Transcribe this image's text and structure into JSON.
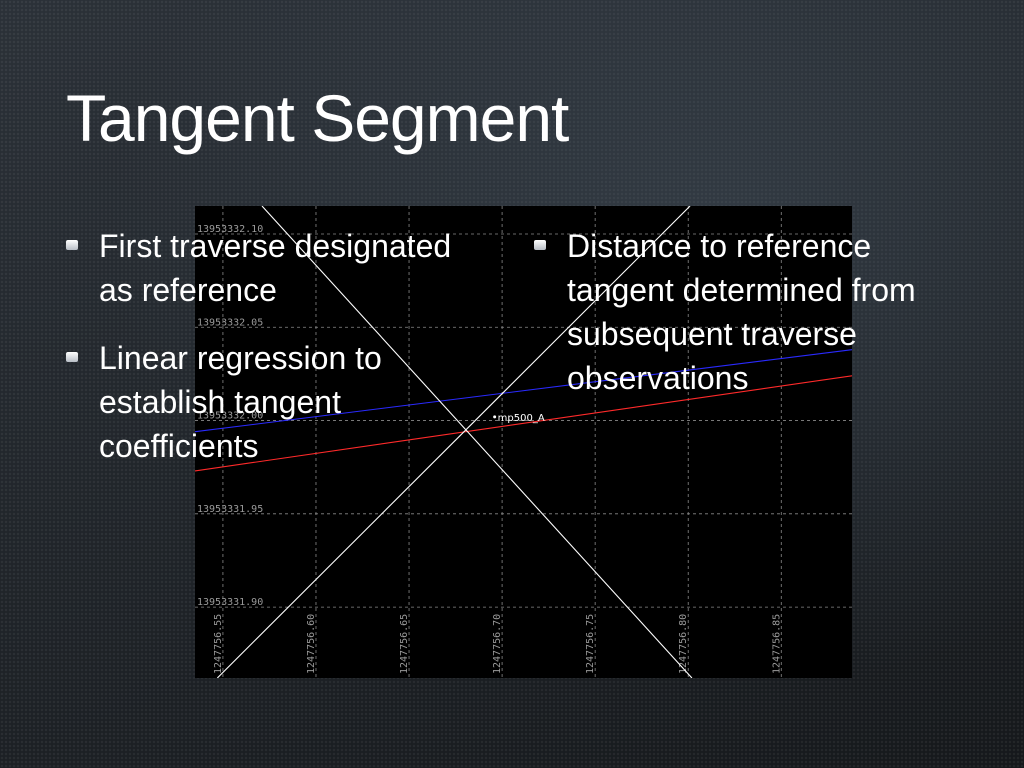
{
  "slide": {
    "title": "Tangent Segment"
  },
  "bullets_left": [
    {
      "text": "First traverse designated as reference"
    },
    {
      "text": "Linear regression to establish tangent coefficients"
    }
  ],
  "bullets_right": [
    {
      "text": "Distance to reference tangent determined from subsequent traverse observations"
    }
  ],
  "chart_data": {
    "type": "line",
    "x_ticks": [
      "1247756.55",
      "1247756.60",
      "1247756.65",
      "1247756.70",
      "1247756.75",
      "1247756.80",
      "1247756.85"
    ],
    "y_ticks": [
      "13953332.10",
      "13953332.05",
      "13953332.00",
      "13953331.95",
      "13953331.90"
    ],
    "xlim": [
      1247756.535,
      1247756.888
    ],
    "ylim": [
      13953331.862,
      13953332.115
    ],
    "grid": true,
    "point": {
      "label": "mp500_A",
      "x": 1247756.696,
      "y": 13953332.002
    },
    "series": [
      {
        "color": "#2a2aff",
        "x": [
          1247756.535,
          1247756.888
        ],
        "y": [
          13953331.994,
          13953332.038
        ]
      },
      {
        "color": "#ff2a2a",
        "x": [
          1247756.535,
          1247756.888
        ],
        "y": [
          13953331.973,
          13953332.024
        ]
      },
      {
        "color": "#ffffff",
        "x": [
          1247756.571,
          1247756.802
        ],
        "y": [
          13953332.115,
          13953331.862
        ]
      },
      {
        "color": "#ffffff",
        "x": [
          1247756.547,
          1247756.801
        ],
        "y": [
          13953331.862,
          13953332.115
        ]
      }
    ],
    "colors": {
      "background": "#000000",
      "grid": "#8a8a8a",
      "tick_label": "#9a9a9a"
    }
  }
}
